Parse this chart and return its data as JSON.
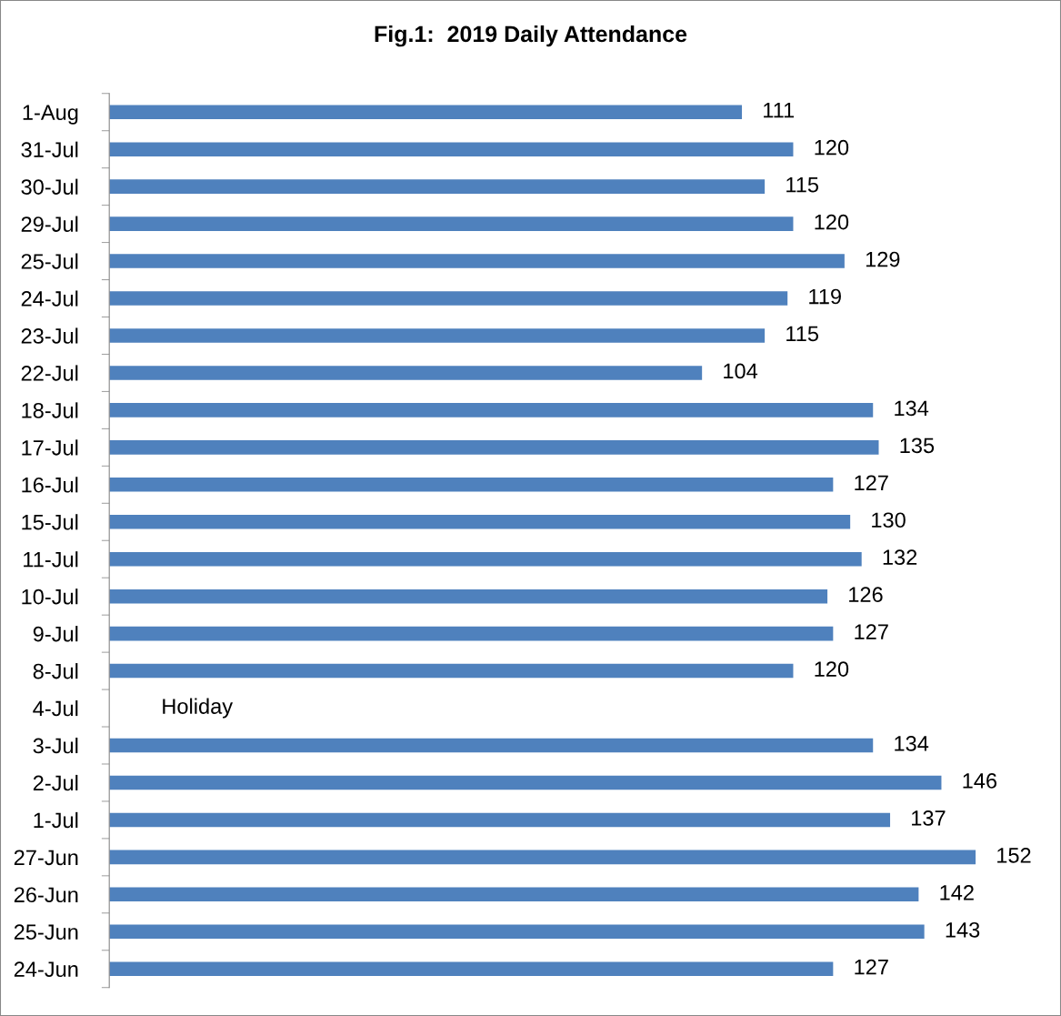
{
  "chart_data": {
    "type": "bar",
    "orientation": "horizontal",
    "title": "Fig.1:  2019 Daily Attendance",
    "categories": [
      "1-Aug",
      "31-Jul",
      "30-Jul",
      "29-Jul",
      "25-Jul",
      "24-Jul",
      "23-Jul",
      "22-Jul",
      "18-Jul",
      "17-Jul",
      "16-Jul",
      "15-Jul",
      "11-Jul",
      "10-Jul",
      "9-Jul",
      "8-Jul",
      "4-Jul",
      "3-Jul",
      "2-Jul",
      "1-Jul",
      "27-Jun",
      "26-Jun",
      "25-Jun",
      "24-Jun"
    ],
    "values": [
      111,
      120,
      115,
      120,
      129,
      119,
      115,
      104,
      134,
      135,
      127,
      130,
      132,
      126,
      127,
      120,
      null,
      134,
      146,
      137,
      152,
      142,
      143,
      127
    ],
    "color": "#4f81bd",
    "data_labels": true,
    "tick_labels": "y",
    "grid": false,
    "legend": false,
    "annotations": [
      "Holiday"
    ]
  }
}
